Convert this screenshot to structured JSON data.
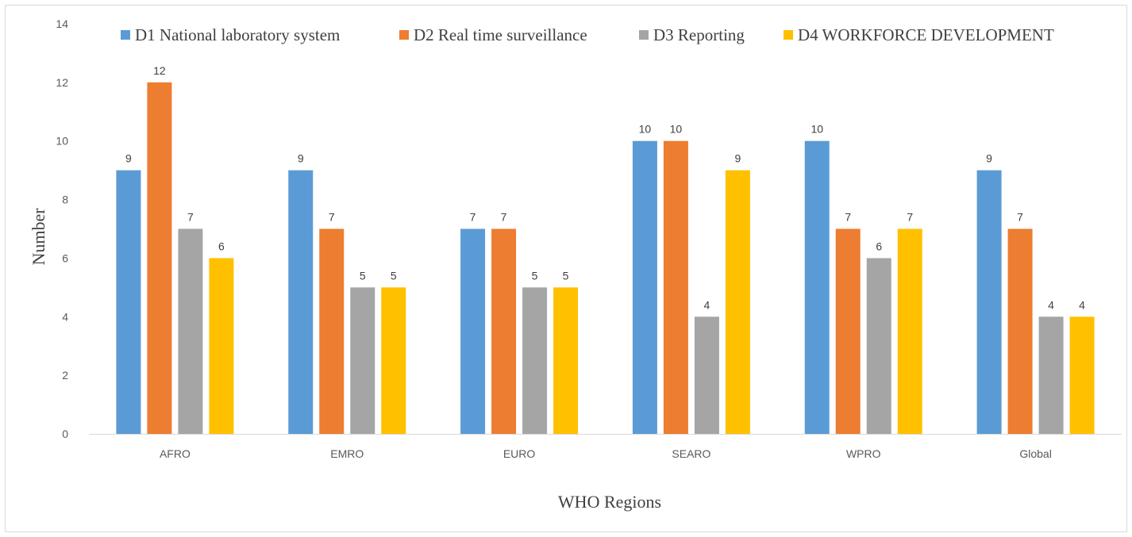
{
  "chart_data": {
    "type": "bar",
    "title": "",
    "xlabel": "WHO Regions",
    "ylabel": "Number",
    "ylim": [
      0,
      14
    ],
    "ytick_step": 2,
    "grid": false,
    "legend_position": "top",
    "categories": [
      "AFRO",
      "EMRO",
      "EURO",
      "SEARO",
      "WPRO",
      "Global"
    ],
    "series": [
      {
        "name": "D1 National laboratory system",
        "color": "#5B9BD5",
        "values": [
          9,
          9,
          7,
          10,
          10,
          9
        ]
      },
      {
        "name": "D2 Real time surveillance",
        "color": "#ED7D31",
        "values": [
          12,
          7,
          7,
          10,
          7,
          7
        ]
      },
      {
        "name": "D3 Reporting",
        "color": "#A5A5A5",
        "values": [
          7,
          5,
          5,
          4,
          6,
          4
        ]
      },
      {
        "name": "D4 WORKFORCE DEVELOPMENT",
        "color": "#FFC000",
        "values": [
          6,
          5,
          5,
          9,
          7,
          4
        ]
      }
    ]
  }
}
